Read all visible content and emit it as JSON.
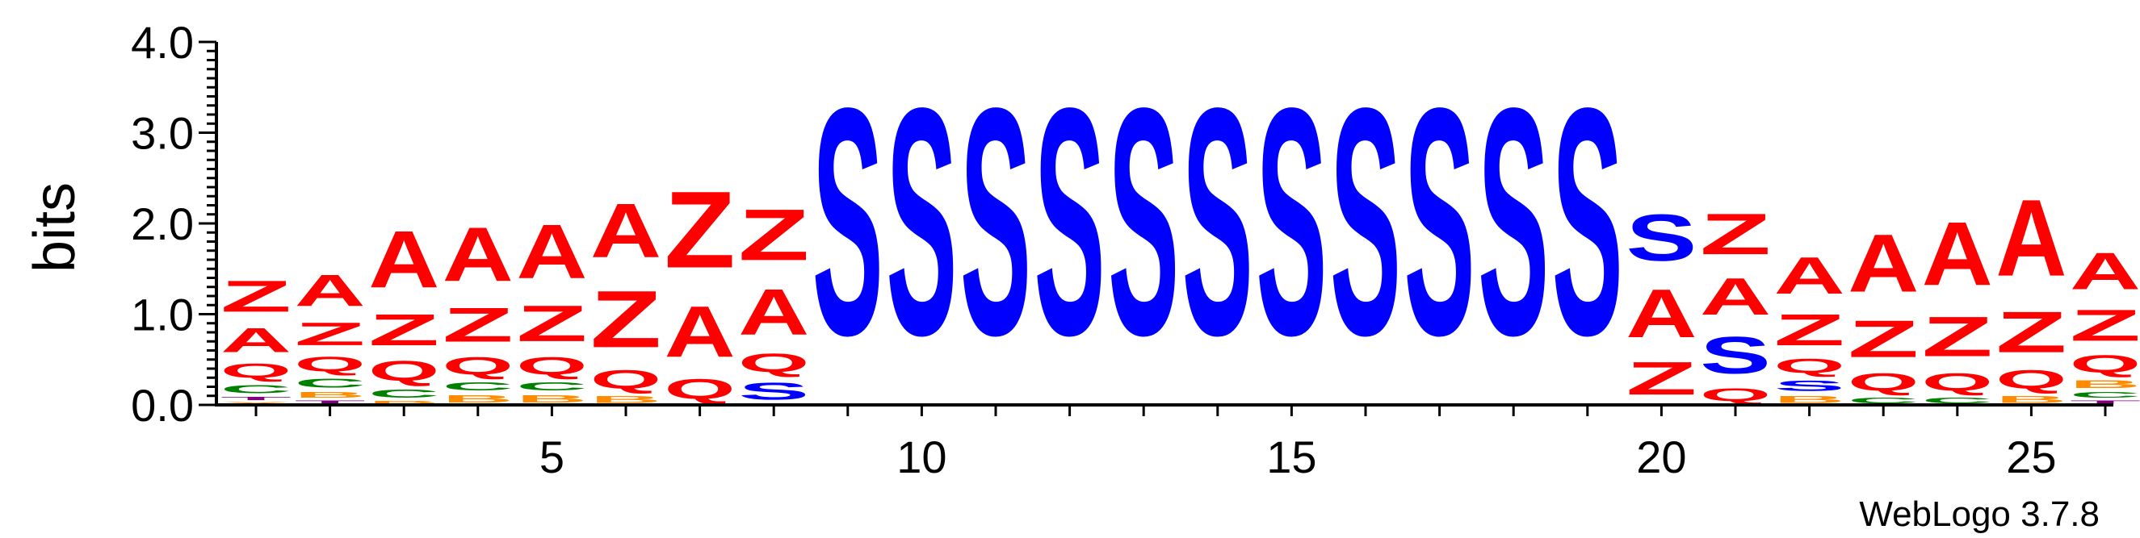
{
  "chart_data": {
    "type": "sequence-logo",
    "ylabel": "bits",
    "ylim": [
      0,
      4.0
    ],
    "y_ticks": [
      "0.0",
      "1.0",
      "2.0",
      "3.0",
      "4.0"
    ],
    "x_ticks": [
      5,
      10,
      15,
      20,
      25
    ],
    "x_tick_labels": [
      "5",
      "10",
      "15",
      "20",
      "25"
    ],
    "footer": "WebLogo 3.7.8",
    "colors": {
      "A": "#ff0000",
      "Z": "#ff0000",
      "Q": "#ff0000",
      "S": "#0000ff",
      "C": "#008000",
      "B": "#ff8c00",
      "T": "#800080",
      "Y": "#ff8c00"
    },
    "positions": [
      {
        "position": 1,
        "letters": [
          [
            "Y",
            0.04
          ],
          [
            "T",
            0.06
          ],
          [
            "C",
            0.15
          ],
          [
            "Q",
            0.25
          ],
          [
            "A",
            0.42
          ],
          [
            "Z",
            0.55
          ]
        ]
      },
      {
        "position": 2,
        "letters": [
          [
            "T",
            0.06
          ],
          [
            "B",
            0.1
          ],
          [
            "C",
            0.16
          ],
          [
            "Q",
            0.26
          ],
          [
            "Z",
            0.4
          ],
          [
            "A",
            0.55
          ]
        ]
      },
      {
        "position": 3,
        "letters": [
          [
            "B",
            0.05
          ],
          [
            "C",
            0.15
          ],
          [
            "Q",
            0.35
          ],
          [
            "Z",
            0.55
          ],
          [
            "A",
            1.0
          ]
        ]
      },
      {
        "position": 4,
        "letters": [
          [
            "B",
            0.13
          ],
          [
            "C",
            0.15
          ],
          [
            "Q",
            0.3
          ],
          [
            "Z",
            0.6
          ],
          [
            "A",
            0.95
          ]
        ]
      },
      {
        "position": 5,
        "letters": [
          [
            "B",
            0.13
          ],
          [
            "C",
            0.15
          ],
          [
            "Q",
            0.3
          ],
          [
            "Z",
            0.63
          ],
          [
            "A",
            0.95
          ]
        ]
      },
      {
        "position": 6,
        "letters": [
          [
            "B",
            0.12
          ],
          [
            "Q",
            0.32
          ],
          [
            "Z",
            1.0
          ],
          [
            "A",
            0.95
          ]
        ]
      },
      {
        "position": 7,
        "letters": [
          [
            "Q",
            0.35
          ],
          [
            "A",
            0.9
          ],
          [
            "Z",
            1.35
          ]
        ]
      },
      {
        "position": 8,
        "letters": [
          [
            "S",
            0.3
          ],
          [
            "Q",
            0.32
          ],
          [
            "A",
            0.8
          ],
          [
            "Z",
            0.9
          ]
        ]
      },
      {
        "position": 9,
        "letters": [
          [
            "S",
            4.0
          ]
        ]
      },
      {
        "position": 10,
        "letters": [
          [
            "S",
            4.0
          ]
        ]
      },
      {
        "position": 11,
        "letters": [
          [
            "S",
            4.0
          ]
        ]
      },
      {
        "position": 12,
        "letters": [
          [
            "S",
            4.0
          ]
        ]
      },
      {
        "position": 13,
        "letters": [
          [
            "S",
            4.0
          ]
        ]
      },
      {
        "position": 14,
        "letters": [
          [
            "S",
            4.0
          ]
        ]
      },
      {
        "position": 15,
        "letters": [
          [
            "S",
            4.0
          ]
        ]
      },
      {
        "position": 16,
        "letters": [
          [
            "S",
            4.0
          ]
        ]
      },
      {
        "position": 17,
        "letters": [
          [
            "S",
            4.0
          ]
        ]
      },
      {
        "position": 18,
        "letters": [
          [
            "S",
            4.0
          ]
        ]
      },
      {
        "position": 19,
        "letters": [
          [
            "S",
            4.0
          ]
        ]
      },
      {
        "position": 20,
        "letters": [
          [
            "Z",
            0.58
          ],
          [
            "A",
            0.85
          ],
          [
            "S",
            0.82
          ]
        ]
      },
      {
        "position": 21,
        "letters": [
          [
            "Q",
            0.22
          ],
          [
            "S",
            0.65
          ],
          [
            "A",
            0.65
          ],
          [
            "Z",
            0.72
          ]
        ]
      },
      {
        "position": 22,
        "letters": [
          [
            "B",
            0.12
          ],
          [
            "S",
            0.18
          ],
          [
            "Q",
            0.25
          ],
          [
            "Z",
            0.55
          ],
          [
            "A",
            0.65
          ]
        ]
      },
      {
        "position": 23,
        "letters": [
          [
            "C",
            0.1
          ],
          [
            "Q",
            0.3
          ],
          [
            "Z",
            0.65
          ],
          [
            "A",
            1.02
          ]
        ]
      },
      {
        "position": 24,
        "letters": [
          [
            "C",
            0.1
          ],
          [
            "Q",
            0.3
          ],
          [
            "Z",
            0.7
          ],
          [
            "A",
            1.12
          ]
        ]
      },
      {
        "position": 25,
        "letters": [
          [
            "B",
            0.12
          ],
          [
            "Q",
            0.32
          ],
          [
            "Z",
            0.72
          ],
          [
            "A",
            1.35
          ]
        ]
      },
      {
        "position": 26,
        "letters": [
          [
            "T",
            0.06
          ],
          [
            "C",
            0.1
          ],
          [
            "B",
            0.14
          ],
          [
            "Q",
            0.3
          ],
          [
            "Z",
            0.55
          ],
          [
            "A",
            0.65
          ]
        ]
      }
    ]
  }
}
